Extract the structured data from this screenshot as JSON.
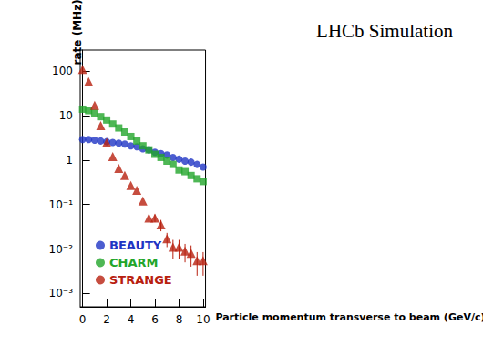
{
  "chart_data": {
    "type": "scatter",
    "title": "LHCb Simulation",
    "xlabel": "Particle momentum transverse to beam (GeV/c)",
    "ylabel": "rate (MHz)",
    "log": "y",
    "legend": "lower left",
    "grid": false,
    "xlim": [
      -0.2,
      10.2
    ],
    "xticks": [
      0,
      2,
      4,
      6,
      8,
      10
    ],
    "ylim": [
      0.0005,
      300
    ],
    "yticks": [
      {
        "value": 0.001,
        "label": "10⁻³"
      },
      {
        "value": 0.01,
        "label": "10⁻²"
      },
      {
        "value": 0.1,
        "label": "10⁻¹"
      },
      1,
      10,
      100
    ],
    "x": [
      0,
      0.5,
      1,
      1.5,
      2,
      2.5,
      3,
      3.5,
      4,
      4.5,
      5,
      5.5,
      6,
      6.5,
      7,
      7.5,
      8,
      8.5,
      9,
      9.5,
      10
    ],
    "series": [
      {
        "name": "BEAUTY",
        "color": "#1f35c4",
        "marker": "circle",
        "values": [
          2.9,
          2.9,
          2.8,
          2.7,
          2.6,
          2.5,
          2.4,
          2.3,
          2.1,
          2.0,
          1.8,
          1.7,
          1.5,
          1.4,
          1.3,
          1.15,
          1.05,
          0.95,
          0.9,
          0.8,
          0.7
        ]
      },
      {
        "name": "CHARM",
        "color": "#22a52a",
        "marker": "square",
        "values": [
          14,
          13,
          11.5,
          9.5,
          8,
          6.5,
          5.3,
          4.3,
          3.4,
          2.7,
          2.1,
          1.7,
          1.35,
          1.15,
          0.95,
          0.8,
          0.6,
          0.55,
          0.45,
          0.38,
          0.33
        ]
      },
      {
        "name": "STRANGE",
        "color": "#b8200f",
        "marker": "triangle",
        "values": [
          110,
          58,
          17,
          6,
          2.5,
          1.2,
          0.65,
          0.45,
          0.27,
          0.21,
          0.12,
          0.05,
          0.05,
          0.035,
          0.017,
          0.011,
          0.011,
          0.009,
          0.008,
          0.0055,
          0.0055
        ],
        "errors": [
          null,
          null,
          null,
          null,
          null,
          null,
          null,
          null,
          null,
          null,
          null,
          0.008,
          0.01,
          0.01,
          0.006,
          0.005,
          0.005,
          0.004,
          0.004,
          0.003,
          0.003
        ]
      }
    ]
  }
}
